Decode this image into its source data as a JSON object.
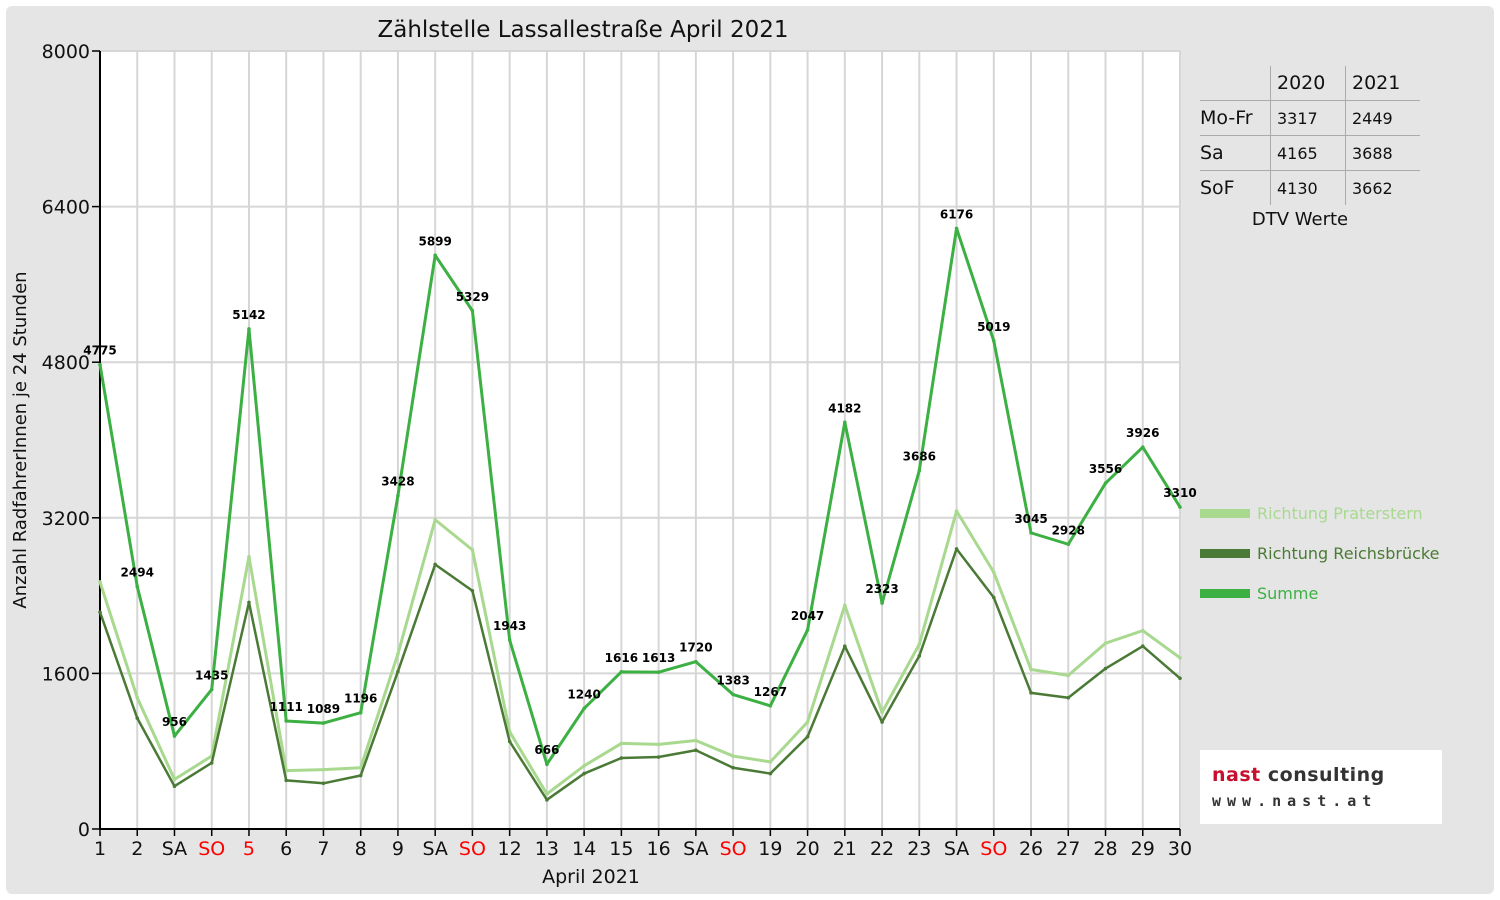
{
  "chart_data": {
    "type": "line",
    "title": "Zählstelle Lassallestraße April 2021",
    "xlabel": "April 2021",
    "ylabel": "Anzahl RadfahrerInnen je 24 Stunden",
    "ylim": [
      0,
      8000
    ],
    "yticks": [
      "0",
      "1600",
      "3200",
      "4800",
      "6400",
      "8000"
    ],
    "grid": true,
    "legend_position": "right",
    "categories": [
      "1",
      "2",
      "SA",
      "SO",
      "5",
      "6",
      "7",
      "8",
      "9",
      "SA",
      "SO",
      "12",
      "13",
      "14",
      "15",
      "16",
      "SA",
      "SO",
      "19",
      "20",
      "21",
      "22",
      "23",
      "SA",
      "SO",
      "26",
      "27",
      "28",
      "29",
      "30"
    ],
    "red_categories": [
      3,
      4,
      10,
      17,
      24
    ],
    "series": [
      {
        "name": "Richtung Praterstern",
        "color": "#a8d98f",
        "values": [
          2540,
          1350,
          510,
          750,
          2800,
          600,
          610,
          630,
          1800,
          3180,
          2870,
          1000,
          360,
          650,
          880,
          870,
          910,
          750,
          690,
          1100,
          2300,
          1200,
          1900,
          3270,
          2640,
          1640,
          1580,
          1910,
          2040,
          1760
        ]
      },
      {
        "name": "Richtung Reichsbrücke",
        "color": "#4a7a35",
        "values": [
          2230,
          1140,
          440,
          680,
          2330,
          500,
          470,
          550,
          1620,
          2720,
          2450,
          900,
          300,
          570,
          730,
          740,
          810,
          630,
          570,
          950,
          1880,
          1100,
          1780,
          2880,
          2380,
          1400,
          1350,
          1650,
          1880,
          1550
        ]
      },
      {
        "name": "Summe",
        "color": "#3cb043",
        "values": [
          4775,
          2494,
          956,
          1435,
          5142,
          1111,
          1089,
          1196,
          3428,
          5899,
          5329,
          1943,
          666,
          1240,
          1616,
          1613,
          1720,
          1383,
          1267,
          2047,
          4182,
          2323,
          3686,
          6176,
          5019,
          3045,
          2928,
          3556,
          3926,
          3310
        ]
      }
    ],
    "value_labels": [
      "4775",
      "2494",
      "956",
      "1435",
      "5142",
      "1111",
      "1089",
      "1196",
      "3428",
      "5899",
      "5329",
      "1943",
      "666",
      "1240",
      "1616",
      "1613",
      "1720",
      "1383",
      "1267",
      "2047",
      "4182",
      "2323",
      "3686",
      "6176",
      "5019",
      "3045",
      "2928",
      "3556",
      "3926",
      "3310"
    ]
  },
  "dtv_table": {
    "caption": "DTV Werte",
    "header": [
      "",
      "2020",
      "2021"
    ],
    "rows": [
      {
        "label": "Mo-Fr",
        "v2020": "3317",
        "v2021": "2449"
      },
      {
        "label": "Sa",
        "v2020": "4165",
        "v2021": "3688"
      },
      {
        "label": "SoF",
        "v2020": "4130",
        "v2021": "3662"
      }
    ]
  },
  "logo": {
    "word1": "nast",
    "word2": "consulting",
    "url": "www.nast.at"
  }
}
